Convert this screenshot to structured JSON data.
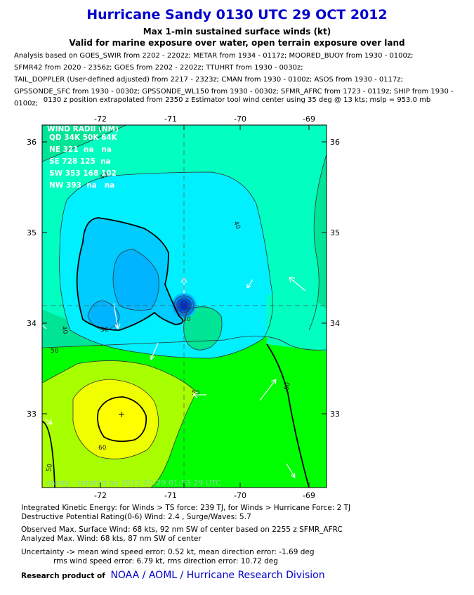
{
  "title": "Hurricane Sandy 0130 UTC 29 OCT 2012",
  "subtitle1": "Max 1-min sustained surface winds (kt)",
  "subtitle2": "Valid for marine exposure over water, open terrain exposure over land",
  "sources": [
    "Analysis based on GOES_SWIR from 2202 - 2202z; METAR from 1934 - 0117z; MOORED_BUOY from 1930 - 0100z;",
    "SFMR42 from 2020 - 2356z; GOES from 2202 - 2202z; TTUHRT from 1930 - 0030z;",
    "TAIL_DOPPLER (User-defined adjusted) from 2217 - 2323z; CMAN from 1930 - 0100z; ASOS from 1930 - 0117z;",
    "GPSSONDE_SFC from 1930 - 0030z; GPSSONDE_WL150 from 1930 - 0030z; SFMR_AFRC from 1723 - 0119z; SHIP from 1930 - 0100z;"
  ],
  "center_note": "0130 z position extrapolated from 2350 z Estimator tool wind center using 35 deg @ 13 kts; mslp = 953.0 mb",
  "map": {
    "lon_ticks": [
      "-72",
      "-71",
      "-70",
      "-69"
    ],
    "lat_ticks": [
      "36",
      "35",
      "34",
      "33"
    ],
    "lon_range": [
      -72.75,
      -68.75
    ],
    "lat_range": [
      32.25,
      36.2
    ],
    "storm_center": {
      "lon": -70.87,
      "lat": 34.18
    },
    "max_wind_location": {
      "lon": -71.6,
      "lat": 33.0
    },
    "contour_labels": [
      "40",
      "40",
      "30",
      "30",
      "40",
      "50",
      "50",
      "60",
      "50",
      "50"
    ],
    "wind_radii": {
      "header": "WIND RADII (NM)",
      "cols": "QD 34K 50K 64K",
      "rows": [
        "NE 321  na   na",
        "SE 728 125  na",
        "SW 353 168 102",
        "NW 393  na   na"
      ]
    },
    "watermark": "sandy - created on 2012-10-29 01:53:29 UTC",
    "colors": {
      "lt_green": "#00e496",
      "cyan": "#00f0ff",
      "lt_blue": "#00ccff",
      "blue": "#00b4ff",
      "aqua": "#00ffc0",
      "green": "#00ff00",
      "yellow_green": "#a8ff00",
      "yellow": "#ffff00"
    }
  },
  "stats": {
    "ike": "Integrated Kinetic Energy: for Winds > TS force: 239 TJ, for Winds > Hurricane Force: 2 TJ",
    "destructive": "Destructive Potential Rating(0-6)  Wind: 2.4 , Surge/Waves: 5.7",
    "observed": "Observed Max. Surface Wind: 68 kts, 92 nm SW of center based on 2255 z SFMR_AFRC",
    "analyzed": "Analyzed Max. Wind: 68 kts, 87 nm  SW of center",
    "uncertainty": "Uncertainty -> mean wind speed error: 0.52 kt, mean direction error:  -1.69 deg",
    "rms": "rms wind speed error: 6.79 kt, rms direction error: 10.72 deg"
  },
  "footer": {
    "label": "Research product of",
    "links": "NOAA  /  AOML  /  Hurricane Research Division"
  }
}
